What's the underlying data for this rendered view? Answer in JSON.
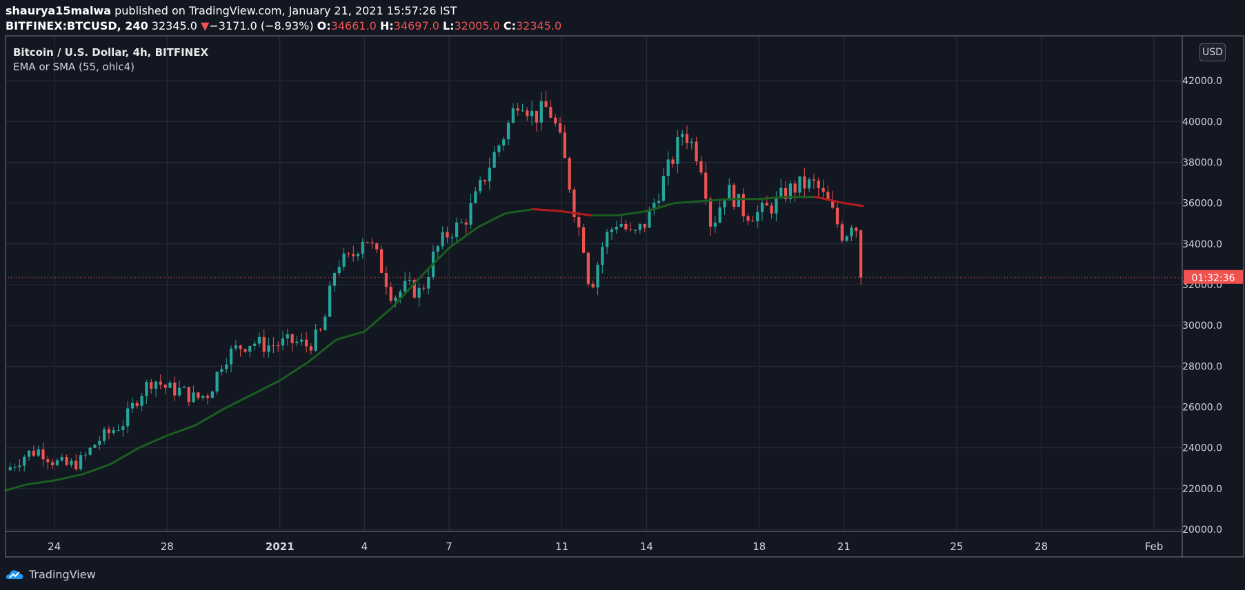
{
  "header": {
    "author": "shaurya15malwa",
    "published": "published on TradingView.com, January 21, 2021 15:57:26 IST",
    "symbol": "BITFINEX:BTCUSD, 240",
    "last": "32345.0",
    "change": "−3171.0 (−8.93%)",
    "open_label": "O:",
    "open": "34661.0",
    "high_label": "H:",
    "high": "34697.0",
    "low_label": "L:",
    "low": "32005.0",
    "close_label": "C:",
    "close": "32345.0"
  },
  "legend": {
    "title": "Bitcoin / U.S. Dollar, 4h, BITFINEX",
    "indicator": "EMA or SMA (55, ohlc4)"
  },
  "currency_button": "USD",
  "countdown": "01:32:36",
  "footer_brand": "TradingView",
  "colors": {
    "background": "#131722",
    "grid": "#2a2e39",
    "up": "#26a69a",
    "down": "#ef5350",
    "ema_up": "#1b5e20",
    "ema_down": "#b71c1c"
  },
  "chart_data": {
    "type": "candlestick",
    "title": "Bitcoin / U.S. Dollar, 4h, BITFINEX",
    "ylim": [
      19900,
      44200
    ],
    "y_ticks": [
      "20000.0",
      "22000.0",
      "24000.0",
      "26000.0",
      "28000.0",
      "30000.0",
      "32000.0",
      "34000.0",
      "36000.0",
      "38000.0",
      "40000.0",
      "42000.0"
    ],
    "y_tick_values": [
      20000,
      22000,
      24000,
      26000,
      28000,
      30000,
      32000,
      34000,
      36000,
      38000,
      40000,
      42000
    ],
    "x_ticks": [
      {
        "label": "24",
        "day": 2,
        "bold": false
      },
      {
        "label": "28",
        "day": 6,
        "bold": false
      },
      {
        "label": "2021",
        "day": 10,
        "bold": true
      },
      {
        "label": "4",
        "day": 13,
        "bold": false
      },
      {
        "label": "7",
        "day": 16,
        "bold": false
      },
      {
        "label": "11",
        "day": 20,
        "bold": false
      },
      {
        "label": "14",
        "day": 23,
        "bold": false
      },
      {
        "label": "18",
        "day": 27,
        "bold": false
      },
      {
        "label": "21",
        "day": 30,
        "bold": false
      },
      {
        "label": "25",
        "day": 34,
        "bold": false
      },
      {
        "label": "28",
        "day": 37,
        "bold": false
      },
      {
        "label": "Feb",
        "day": 41,
        "bold": false
      }
    ],
    "day_range": [
      0.27,
      42.0
    ],
    "last_price": 32345,
    "close_anchors": [
      [
        0.3,
        22900
      ],
      [
        1.0,
        23700
      ],
      [
        1.5,
        23900
      ],
      [
        2.0,
        23300
      ],
      [
        2.5,
        23100
      ],
      [
        3.0,
        23400
      ],
      [
        3.5,
        24300
      ],
      [
        4.0,
        24800
      ],
      [
        4.5,
        25300
      ],
      [
        5.0,
        26600
      ],
      [
        5.5,
        27400
      ],
      [
        6.0,
        26900
      ],
      [
        6.5,
        26800
      ],
      [
        7.0,
        26400
      ],
      [
        7.5,
        26700
      ],
      [
        8.0,
        28400
      ],
      [
        8.5,
        28900
      ],
      [
        9.0,
        29200
      ],
      [
        9.5,
        29000
      ],
      [
        10.0,
        29100
      ],
      [
        10.5,
        29200
      ],
      [
        11.0,
        29000
      ],
      [
        11.5,
        29700
      ],
      [
        12.0,
        33100
      ],
      [
        12.5,
        33200
      ],
      [
        13.0,
        34500
      ],
      [
        13.5,
        33200
      ],
      [
        14.0,
        31400
      ],
      [
        14.5,
        31900
      ],
      [
        15.0,
        31600
      ],
      [
        15.5,
        33600
      ],
      [
        16.0,
        34600
      ],
      [
        16.5,
        35000
      ],
      [
        17.0,
        36400
      ],
      [
        17.5,
        38100
      ],
      [
        18.0,
        39500
      ],
      [
        18.5,
        41300
      ],
      [
        19.0,
        40200
      ],
      [
        19.5,
        40700
      ],
      [
        19.7,
        40100
      ],
      [
        20.0,
        38700
      ],
      [
        20.2,
        37400
      ],
      [
        20.5,
        35300
      ],
      [
        20.8,
        33800
      ],
      [
        21.0,
        31700
      ],
      [
        21.5,
        34200
      ],
      [
        22.0,
        35200
      ],
      [
        22.5,
        34300
      ],
      [
        23.0,
        35100
      ],
      [
        23.5,
        36800
      ],
      [
        24.0,
        38400
      ],
      [
        24.3,
        39600
      ],
      [
        24.7,
        38700
      ],
      [
        25.0,
        37700
      ],
      [
        25.3,
        34800
      ],
      [
        25.8,
        36600
      ],
      [
        26.0,
        36500
      ],
      [
        26.5,
        35500
      ],
      [
        27.0,
        35500
      ],
      [
        27.5,
        35900
      ],
      [
        28.0,
        36600
      ],
      [
        28.5,
        36900
      ],
      [
        29.0,
        36900
      ],
      [
        29.5,
        35800
      ],
      [
        30.0,
        34300
      ],
      [
        30.3,
        35200
      ],
      [
        30.5,
        34600
      ],
      [
        30.7,
        32345
      ]
    ],
    "ema_anchors": [
      [
        0.27,
        21900
      ],
      [
        1.0,
        22200
      ],
      [
        2.0,
        22400
      ],
      [
        3.0,
        22700
      ],
      [
        4.0,
        23200
      ],
      [
        5.0,
        24000
      ],
      [
        6.0,
        24600
      ],
      [
        7.0,
        25100
      ],
      [
        8.0,
        25900
      ],
      [
        9.0,
        26600
      ],
      [
        10.0,
        27300
      ],
      [
        11.0,
        28200
      ],
      [
        12.0,
        29300
      ],
      [
        13.0,
        29700
      ],
      [
        14.0,
        30900
      ],
      [
        15.0,
        32400
      ],
      [
        16.0,
        33800
      ],
      [
        17.0,
        34800
      ],
      [
        18.0,
        35500
      ],
      [
        19.0,
        35700
      ],
      [
        20.0,
        35600
      ],
      [
        21.0,
        35400
      ],
      [
        22.0,
        35400
      ],
      [
        23.0,
        35600
      ],
      [
        24.0,
        36000
      ],
      [
        25.0,
        36100
      ],
      [
        26.0,
        36200
      ],
      [
        27.0,
        36200
      ],
      [
        28.0,
        36300
      ],
      [
        29.0,
        36300
      ],
      [
        30.0,
        36000
      ],
      [
        30.7,
        35850
      ]
    ]
  }
}
